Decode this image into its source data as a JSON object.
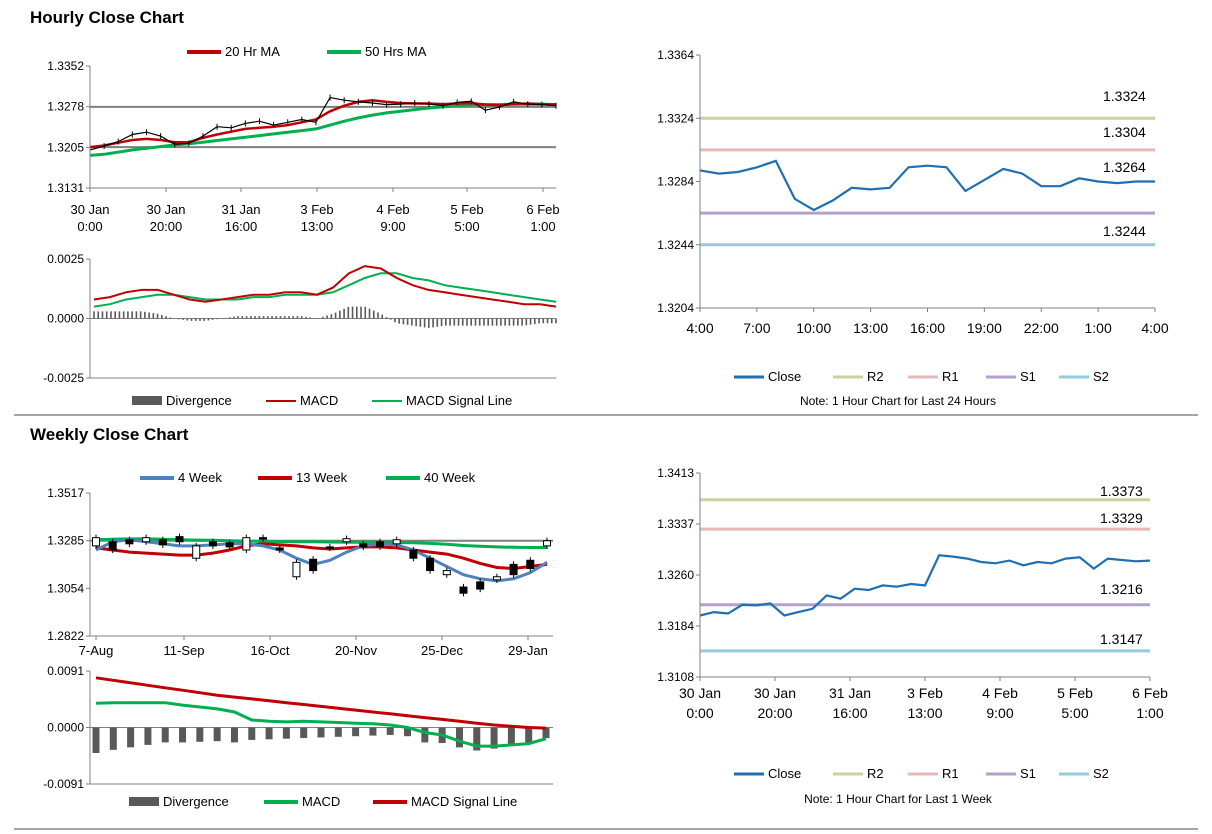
{
  "hourly": {
    "title": "Hourly Close Chart"
  },
  "weekly": {
    "title": "Weekly Close Chart"
  },
  "colors": {
    "ma20": "#c00000",
    "ma50": "#00b050",
    "close": "#1f6fb4",
    "r2": "#c3d69b",
    "r1": "#e6b9b8",
    "s1": "#b3a2c7",
    "s2": "#93cddd",
    "level": "#7f7f7f",
    "div": "#595959",
    "w4": "#4f81bd"
  },
  "chart_data": [
    {
      "id": "hourly-price",
      "type": "line",
      "legend": [
        "20 Hr MA",
        "50 Hrs MA"
      ],
      "yticks": [
        "1.3352",
        "1.3278",
        "1.3205",
        "1.3131"
      ],
      "ylim": [
        1.3131,
        1.3352
      ],
      "xticks": [
        [
          "30 Jan",
          "0:00"
        ],
        [
          "30 Jan",
          "20:00"
        ],
        [
          "31 Jan",
          "16:00"
        ],
        [
          "3 Feb",
          "13:00"
        ],
        [
          "4 Feb",
          "9:00"
        ],
        [
          "5 Feb",
          "5:00"
        ],
        [
          "6 Feb",
          "1:00"
        ]
      ],
      "ref_lines": [
        1.3278,
        1.3205
      ],
      "price": [
        1.32,
        1.3207,
        1.3215,
        1.3228,
        1.3232,
        1.3225,
        1.321,
        1.3212,
        1.3225,
        1.3242,
        1.324,
        1.3248,
        1.3252,
        1.3245,
        1.325,
        1.3255,
        1.325,
        1.3295,
        1.329,
        1.3287,
        1.3285,
        1.3282,
        1.3283,
        1.3285,
        1.3283,
        1.328,
        1.3286,
        1.3288,
        1.3272,
        1.3278,
        1.3287,
        1.3283,
        1.3282,
        1.328
      ],
      "ma20": [
        1.3205,
        1.3208,
        1.3213,
        1.3218,
        1.322,
        1.3218,
        1.3214,
        1.3214,
        1.3222,
        1.3228,
        1.3233,
        1.3238,
        1.324,
        1.3242,
        1.3245,
        1.325,
        1.3255,
        1.327,
        1.328,
        1.3287,
        1.329,
        1.3287,
        1.3285,
        1.3284,
        1.3284,
        1.3283,
        1.3284,
        1.3285,
        1.3282,
        1.3281,
        1.3283,
        1.3284,
        1.3283,
        1.3282
      ],
      "ma50": [
        1.319,
        1.3192,
        1.3196,
        1.32,
        1.3203,
        1.3206,
        1.3209,
        1.3211,
        1.3214,
        1.3217,
        1.322,
        1.3223,
        1.3226,
        1.3229,
        1.3232,
        1.3235,
        1.3238,
        1.3245,
        1.3252,
        1.3258,
        1.3263,
        1.3267,
        1.327,
        1.3273,
        1.3276,
        1.3278,
        1.328,
        1.3282,
        1.3282,
        1.3282,
        1.3283,
        1.3283,
        1.3283,
        1.3282
      ]
    },
    {
      "id": "hourly-macd",
      "type": "line",
      "yticks": [
        "0.0025",
        "0.0000",
        "-0.0025"
      ],
      "ylim": [
        -0.0025,
        0.0025
      ],
      "legend": [
        "Divergence",
        "MACD",
        "MACD Signal Line"
      ],
      "macd": [
        0.0008,
        0.0009,
        0.0011,
        0.0012,
        0.0012,
        0.001,
        0.0008,
        0.0007,
        0.0008,
        0.0009,
        0.001,
        0.001,
        0.0011,
        0.0011,
        0.001,
        0.0013,
        0.0019,
        0.0022,
        0.0021,
        0.0017,
        0.0014,
        0.0012,
        0.0011,
        0.001,
        0.0009,
        0.0008,
        0.0007,
        0.0006,
        0.0006,
        0.0005
      ],
      "signal": [
        0.0005,
        0.0006,
        0.0008,
        0.0009,
        0.001,
        0.001,
        0.0009,
        0.0008,
        0.0008,
        0.0008,
        0.0009,
        0.0009,
        0.001,
        0.001,
        0.001,
        0.0011,
        0.0014,
        0.0017,
        0.0019,
        0.0019,
        0.0017,
        0.0016,
        0.0014,
        0.0013,
        0.0012,
        0.0011,
        0.001,
        0.0009,
        0.0008,
        0.0007
      ],
      "divergence": [
        0.0003,
        0.0003,
        0.0003,
        0.0003,
        0.0002,
        0.0,
        -0.0001,
        -0.0001,
        0.0,
        0.0001,
        0.0001,
        0.0001,
        0.0001,
        0.0001,
        0.0,
        0.0002,
        0.0005,
        0.0005,
        0.0002,
        -0.0002,
        -0.0003,
        -0.0004,
        -0.0003,
        -0.0003,
        -0.0003,
        -0.0003,
        -0.0003,
        -0.0003,
        -0.0002,
        -0.0002
      ]
    },
    {
      "id": "hourly-levels",
      "type": "line",
      "yticks": [
        "1.3364",
        "1.3324",
        "1.3284",
        "1.3244",
        "1.3204"
      ],
      "ylim": [
        1.3204,
        1.3364
      ],
      "xticks": [
        "4:00",
        "7:00",
        "10:00",
        "13:00",
        "16:00",
        "19:00",
        "22:00",
        "1:00",
        "4:00"
      ],
      "close": [
        1.3291,
        1.3289,
        1.329,
        1.3293,
        1.3297,
        1.3273,
        1.3266,
        1.3272,
        1.328,
        1.3279,
        1.328,
        1.3293,
        1.3294,
        1.3293,
        1.3278,
        1.3285,
        1.3292,
        1.3289,
        1.3281,
        1.3281,
        1.3286,
        1.3284,
        1.3283,
        1.3284,
        1.3284
      ],
      "levels": {
        "R2": 1.3324,
        "R1": 1.3304,
        "S1": 1.3264,
        "S2": 1.3244
      },
      "level_labels": [
        "1.3324",
        "1.3304",
        "1.3264",
        "1.3244"
      ],
      "legend": [
        "Close",
        "R2",
        "R1",
        "S1",
        "S2"
      ],
      "note": "Note: 1 Hour Chart for Last 24 Hours"
    },
    {
      "id": "weekly-price",
      "type": "line",
      "legend": [
        "4 Week",
        "13 Week",
        "40 Week"
      ],
      "yticks": [
        "1.3517",
        "1.3285",
        "1.3054",
        "1.2822"
      ],
      "ylim": [
        1.2822,
        1.3517
      ],
      "xticks": [
        "7-Aug",
        "11-Sep",
        "16-Oct",
        "20-Nov",
        "25-Dec",
        "29-Jan"
      ],
      "ref_lines": [
        1.3285
      ],
      "candles": [
        [
          1.33,
          1.326
        ],
        [
          1.328,
          1.324
        ],
        [
          1.329,
          1.327
        ],
        [
          1.33,
          1.328
        ],
        [
          1.329,
          1.3265
        ],
        [
          1.3305,
          1.328
        ],
        [
          1.326,
          1.32
        ],
        [
          1.328,
          1.326
        ],
        [
          1.3275,
          1.3255
        ],
        [
          1.33,
          1.324
        ],
        [
          1.33,
          1.3295
        ],
        [
          1.325,
          1.324
        ],
        [
          1.318,
          1.311
        ],
        [
          1.3195,
          1.314
        ],
        [
          1.3255,
          1.325
        ],
        [
          1.3295,
          1.328
        ],
        [
          1.327,
          1.3255
        ],
        [
          1.328,
          1.3255
        ],
        [
          1.329,
          1.327
        ],
        [
          1.324,
          1.32
        ],
        [
          1.32,
          1.314
        ],
        [
          1.314,
          1.312
        ],
        [
          1.306,
          1.303
        ],
        [
          1.3085,
          1.305
        ],
        [
          1.311,
          1.3095
        ],
        [
          1.317,
          1.312
        ],
        [
          1.319,
          1.315
        ],
        [
          1.3285,
          1.326
        ]
      ],
      "w4": [
        1.324,
        1.328,
        1.329,
        1.328,
        1.327,
        1.326,
        1.326,
        1.3265,
        1.327,
        1.327,
        1.326,
        1.324,
        1.32,
        1.317,
        1.319,
        1.323,
        1.326,
        1.327,
        1.3265,
        1.324,
        1.32,
        1.316,
        1.312,
        1.31,
        1.309,
        1.31,
        1.313,
        1.318
      ],
      "w13": [
        1.325,
        1.324,
        1.323,
        1.3225,
        1.322,
        1.3215,
        1.3215,
        1.3225,
        1.324,
        1.326,
        1.327,
        1.3265,
        1.326,
        1.325,
        1.3245,
        1.325,
        1.3255,
        1.3255,
        1.325,
        1.324,
        1.323,
        1.322,
        1.32,
        1.3175,
        1.3155,
        1.315,
        1.316,
        1.317
      ],
      "w40": [
        1.329,
        1.3292,
        1.3294,
        1.3294,
        1.3292,
        1.329,
        1.3288,
        1.3287,
        1.3285,
        1.3283,
        1.3282,
        1.3281,
        1.328,
        1.328,
        1.3279,
        1.3278,
        1.3278,
        1.3277,
        1.3276,
        1.3275,
        1.3272,
        1.3268,
        1.3262,
        1.3258,
        1.3255,
        1.3253,
        1.3252,
        1.3252
      ]
    },
    {
      "id": "weekly-macd",
      "type": "line",
      "yticks": [
        "0.0091",
        "0.0000",
        "-0.0091"
      ],
      "ylim": [
        -0.0091,
        0.0091
      ],
      "legend": [
        "Divergence",
        "MACD",
        "MACD Signal Line"
      ],
      "signal": [
        0.008,
        0.0076,
        0.0072,
        0.0068,
        0.0064,
        0.006,
        0.0056,
        0.0052,
        0.0049,
        0.0046,
        0.0043,
        0.004,
        0.0037,
        0.0034,
        0.0031,
        0.0028,
        0.0025,
        0.0022,
        0.0019,
        0.0016,
        0.0013,
        0.001,
        0.0007,
        0.0004,
        0.0002,
        0.0,
        -0.0001
      ],
      "macd": [
        0.0039,
        0.004,
        0.004,
        0.004,
        0.004,
        0.0036,
        0.0033,
        0.003,
        0.0025,
        0.0012,
        0.001,
        0.0009,
        0.001,
        0.0009,
        0.0008,
        0.0007,
        0.0006,
        0.0004,
        0.0,
        -0.0008,
        -0.0012,
        -0.0022,
        -0.003,
        -0.003,
        -0.0028,
        -0.0026,
        -0.0018
      ],
      "divergence": [
        -0.0041,
        -0.0036,
        -0.0032,
        -0.0028,
        -0.0024,
        -0.0024,
        -0.0023,
        -0.0022,
        -0.0024,
        -0.002,
        -0.0019,
        -0.0018,
        -0.0017,
        -0.0016,
        -0.0015,
        -0.0014,
        -0.0013,
        -0.0012,
        -0.0014,
        -0.0024,
        -0.0025,
        -0.0032,
        -0.0037,
        -0.0034,
        -0.003,
        -0.0026,
        -0.0017
      ]
    },
    {
      "id": "weekly-levels",
      "type": "line",
      "yticks": [
        "1.3413",
        "1.3337",
        "1.3260",
        "1.3184",
        "1.3108"
      ],
      "ylim": [
        1.3108,
        1.3413
      ],
      "xticks": [
        [
          "30 Jan",
          "0:00"
        ],
        [
          "30 Jan",
          "20:00"
        ],
        [
          "31 Jan",
          "16:00"
        ],
        [
          "3 Feb",
          "13:00"
        ],
        [
          "4 Feb",
          "9:00"
        ],
        [
          "5 Feb",
          "5:00"
        ],
        [
          "6 Feb",
          "1:00"
        ]
      ],
      "close": [
        1.32,
        1.3205,
        1.3203,
        1.3216,
        1.3215,
        1.3218,
        1.32,
        1.3205,
        1.321,
        1.323,
        1.3225,
        1.324,
        1.3238,
        1.3245,
        1.3243,
        1.3247,
        1.3245,
        1.329,
        1.3288,
        1.3285,
        1.328,
        1.3278,
        1.3282,
        1.3275,
        1.328,
        1.3278,
        1.3285,
        1.3287,
        1.327,
        1.3285,
        1.3283,
        1.3281,
        1.3282
      ],
      "levels": {
        "R2": 1.3373,
        "R1": 1.3329,
        "S1": 1.3216,
        "S2": 1.3147
      },
      "level_labels": [
        "1.3373",
        "1.3329",
        "1.3216",
        "1.3147"
      ],
      "legend": [
        "Close",
        "R2",
        "R1",
        "S1",
        "S2"
      ],
      "note": "Note: 1 Hour Chart for  Last 1 Week"
    }
  ]
}
